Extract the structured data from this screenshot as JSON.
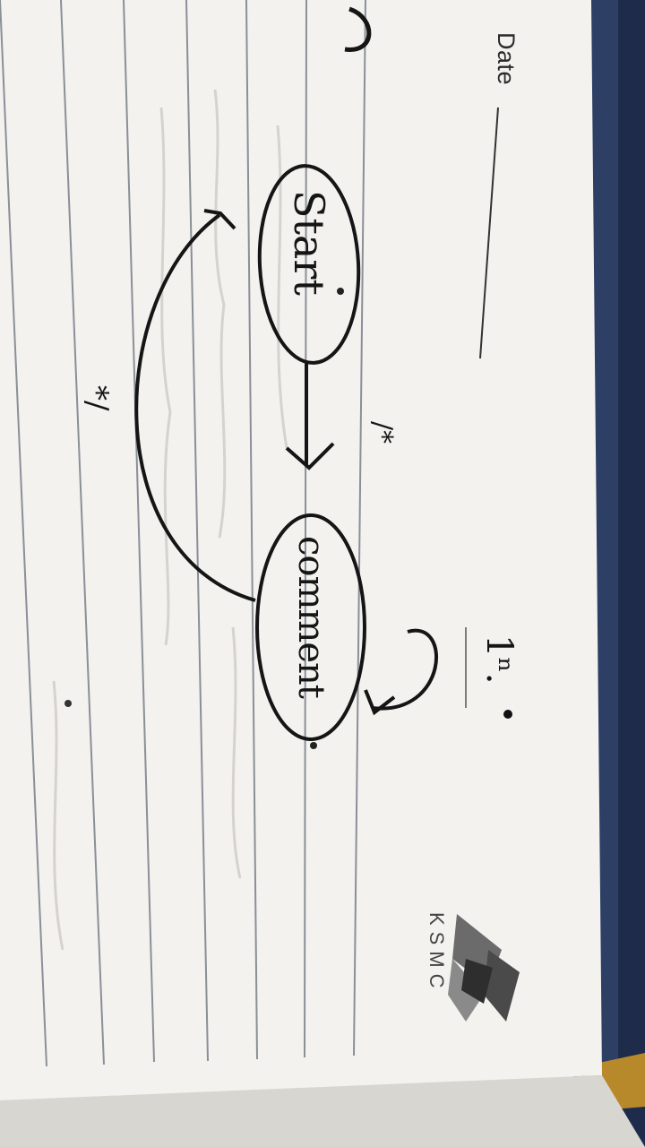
{
  "page": {
    "date_label": "Date",
    "brand": "KSMC",
    "heading_mark": "1ⁿ.",
    "diagram": {
      "state_start": "Start",
      "state_comment": "comment",
      "edge_label_top": "/*",
      "edge_label_bottom": "*/"
    }
  },
  "colors": {
    "paper": "#f3f2ef",
    "fabric": "#2e3f66",
    "ink": "#151515",
    "ruled_line": "#8a8f98"
  }
}
